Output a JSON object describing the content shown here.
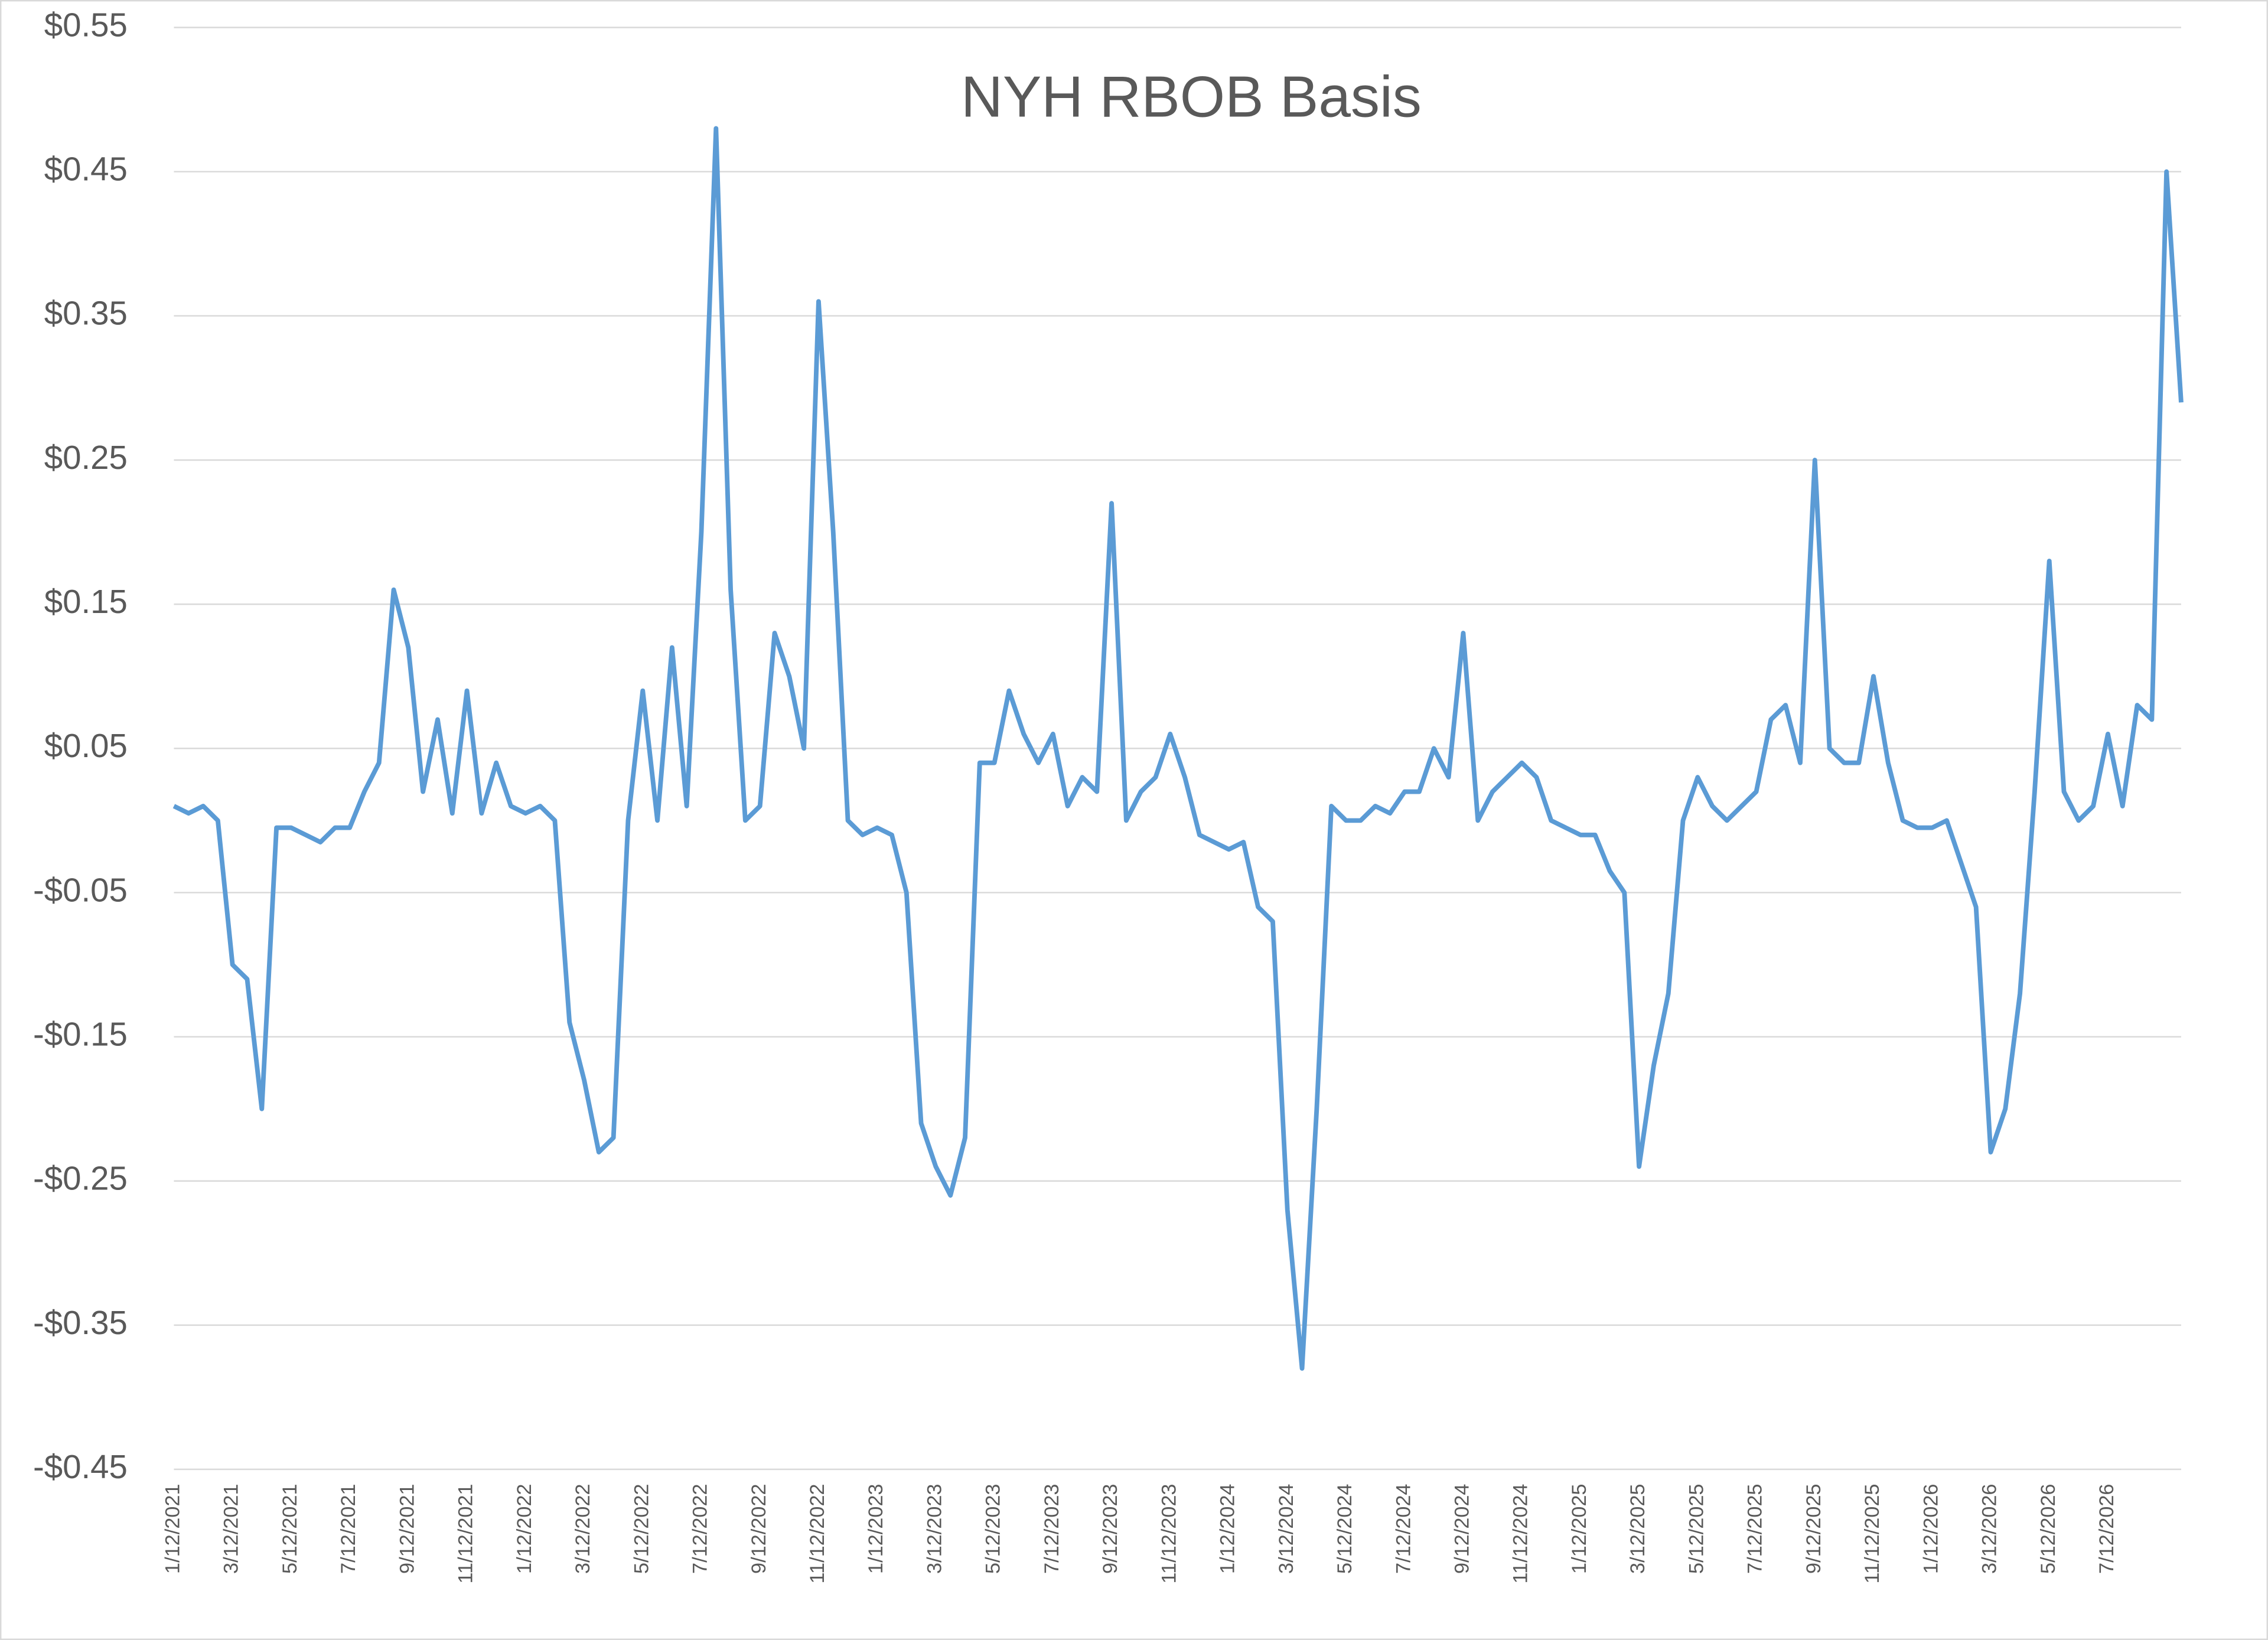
{
  "chart_data": {
    "type": "line",
    "title": "NYH RBOB Basis",
    "categories": [
      "1/12/2021",
      null,
      null,
      null,
      "3/12/2021",
      null,
      null,
      null,
      "5/12/2021",
      null,
      null,
      null,
      "7/12/2021",
      null,
      null,
      null,
      "9/12/2021",
      null,
      null,
      null,
      "11/12/2021",
      null,
      null,
      null,
      "1/12/2022",
      null,
      null,
      null,
      "3/12/2022",
      null,
      null,
      null,
      "5/12/2022",
      null,
      null,
      null,
      "7/12/2022",
      null,
      null,
      null,
      "9/12/2022",
      null,
      null,
      null,
      "11/12/2022",
      null,
      null,
      null,
      "1/12/2023",
      null,
      null,
      null,
      "3/12/2023",
      null,
      null,
      null,
      "5/12/2023",
      null,
      null,
      null,
      "7/12/2023",
      null,
      null,
      null,
      "9/12/2023",
      null,
      null,
      null,
      "11/12/2023",
      null,
      null,
      null,
      "1/12/2024",
      null,
      null,
      null,
      "3/12/2024",
      null,
      null,
      null,
      "5/12/2024",
      null,
      null,
      null,
      "7/12/2024",
      null,
      null,
      null,
      "9/12/2024",
      null,
      null,
      null,
      "11/12/2024",
      null,
      null,
      null,
      "1/12/2025",
      null,
      null,
      null,
      "3/12/2025",
      null,
      null,
      null,
      "5/12/2025",
      null,
      null,
      null,
      "7/12/2025",
      null,
      null,
      null,
      "9/12/2025",
      null,
      null,
      null,
      "11/12/2025",
      null,
      null,
      null,
      "1/12/2026",
      null,
      null,
      null,
      "3/12/2026",
      null,
      null,
      null,
      "5/12/2026",
      null,
      null,
      null,
      "7/12/2026",
      null,
      null,
      null,
      null,
      null
    ],
    "values": [
      0.01,
      0.005,
      0.01,
      0.0,
      -0.1,
      -0.11,
      -0.2,
      -0.005,
      -0.005,
      -0.01,
      -0.015,
      -0.005,
      -0.005,
      0.02,
      0.04,
      0.16,
      0.12,
      0.02,
      0.07,
      0.005,
      0.09,
      0.005,
      0.04,
      0.01,
      0.005,
      0.01,
      0.0,
      -0.14,
      -0.18,
      -0.23,
      -0.22,
      0.0,
      0.09,
      0.0,
      0.12,
      0.01,
      0.2,
      0.48,
      0.16,
      0.0,
      0.01,
      0.13,
      0.1,
      0.05,
      0.36,
      0.2,
      0.0,
      -0.01,
      -0.005,
      -0.01,
      -0.05,
      -0.21,
      -0.24,
      -0.26,
      -0.22,
      0.04,
      0.04,
      0.09,
      0.06,
      0.04,
      0.06,
      0.01,
      0.03,
      0.02,
      0.22,
      0.0,
      0.02,
      0.03,
      0.06,
      0.03,
      -0.01,
      -0.015,
      -0.02,
      -0.015,
      -0.06,
      -0.07,
      -0.27,
      -0.38,
      -0.2,
      0.01,
      0.0,
      0.0,
      0.01,
      0.005,
      0.02,
      0.02,
      0.05,
      0.03,
      0.13,
      0.0,
      0.02,
      0.03,
      0.04,
      0.03,
      0.0,
      -0.005,
      -0.01,
      -0.01,
      -0.035,
      -0.05,
      -0.24,
      -0.17,
      -0.12,
      0.0,
      0.03,
      0.01,
      0.0,
      0.01,
      0.02,
      0.07,
      0.08,
      0.04,
      0.25,
      0.05,
      0.04,
      0.04,
      0.1,
      0.04,
      0.0,
      -0.005,
      -0.005,
      0.0,
      -0.03,
      -0.06,
      -0.23,
      -0.2,
      -0.12,
      0.02,
      0.18,
      0.02,
      0.0,
      0.01,
      0.06,
      0.01,
      0.08,
      0.07,
      0.45,
      0.29
    ],
    "color": "#5b9bd5",
    "ylim": [
      -0.45,
      0.55
    ],
    "yticks": [
      {
        "value": 0.55,
        "label": "$0.55"
      },
      {
        "value": 0.45,
        "label": "$0.45"
      },
      {
        "value": 0.35,
        "label": "$0.35"
      },
      {
        "value": 0.25,
        "label": "$0.25"
      },
      {
        "value": 0.15,
        "label": "$0.15"
      },
      {
        "value": 0.05,
        "label": "$0.05"
      },
      {
        "value": -0.05,
        "label": "-$0.05"
      },
      {
        "value": -0.15,
        "label": "-$0.15"
      },
      {
        "value": -0.25,
        "label": "-$0.25"
      },
      {
        "value": -0.35,
        "label": "-$0.35"
      },
      {
        "value": -0.45,
        "label": "-$0.45"
      }
    ],
    "grid": true
  }
}
